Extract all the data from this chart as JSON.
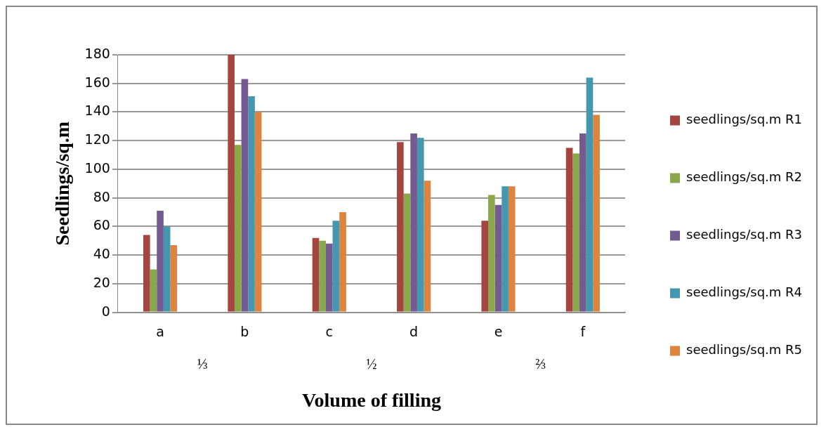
{
  "chart_data": {
    "type": "bar",
    "xlabel": "Volume of filling",
    "ylabel": "Seedlings/sq.m",
    "categories": [
      "a",
      "b",
      "c",
      "d",
      "e",
      "f"
    ],
    "series": [
      {
        "name": "seedlings/sq.m R1",
        "color": "#a5453f",
        "values": [
          54,
          180,
          52,
          119,
          64,
          115
        ]
      },
      {
        "name": "seedlings/sq.m R2",
        "color": "#8aa84b",
        "values": [
          30,
          117,
          50,
          83,
          82,
          111
        ]
      },
      {
        "name": "seedlings/sq.m R3",
        "color": "#735a90",
        "values": [
          71,
          163,
          48,
          125,
          75,
          125
        ]
      },
      {
        "name": "seedlings/sq.m R4",
        "color": "#4398b0",
        "values": [
          60,
          151,
          64,
          122,
          88,
          164
        ]
      },
      {
        "name": "seedlings/sq.m R5",
        "color": "#dd843e",
        "values": [
          47,
          140,
          70,
          92,
          88,
          138
        ]
      }
    ],
    "ylim": [
      0,
      180
    ],
    "yticks": [
      0,
      20,
      40,
      60,
      80,
      100,
      120,
      140,
      160,
      180
    ],
    "grid": "y",
    "legend": "right",
    "annotations": [
      "⅓",
      "½",
      "⅔"
    ]
  }
}
